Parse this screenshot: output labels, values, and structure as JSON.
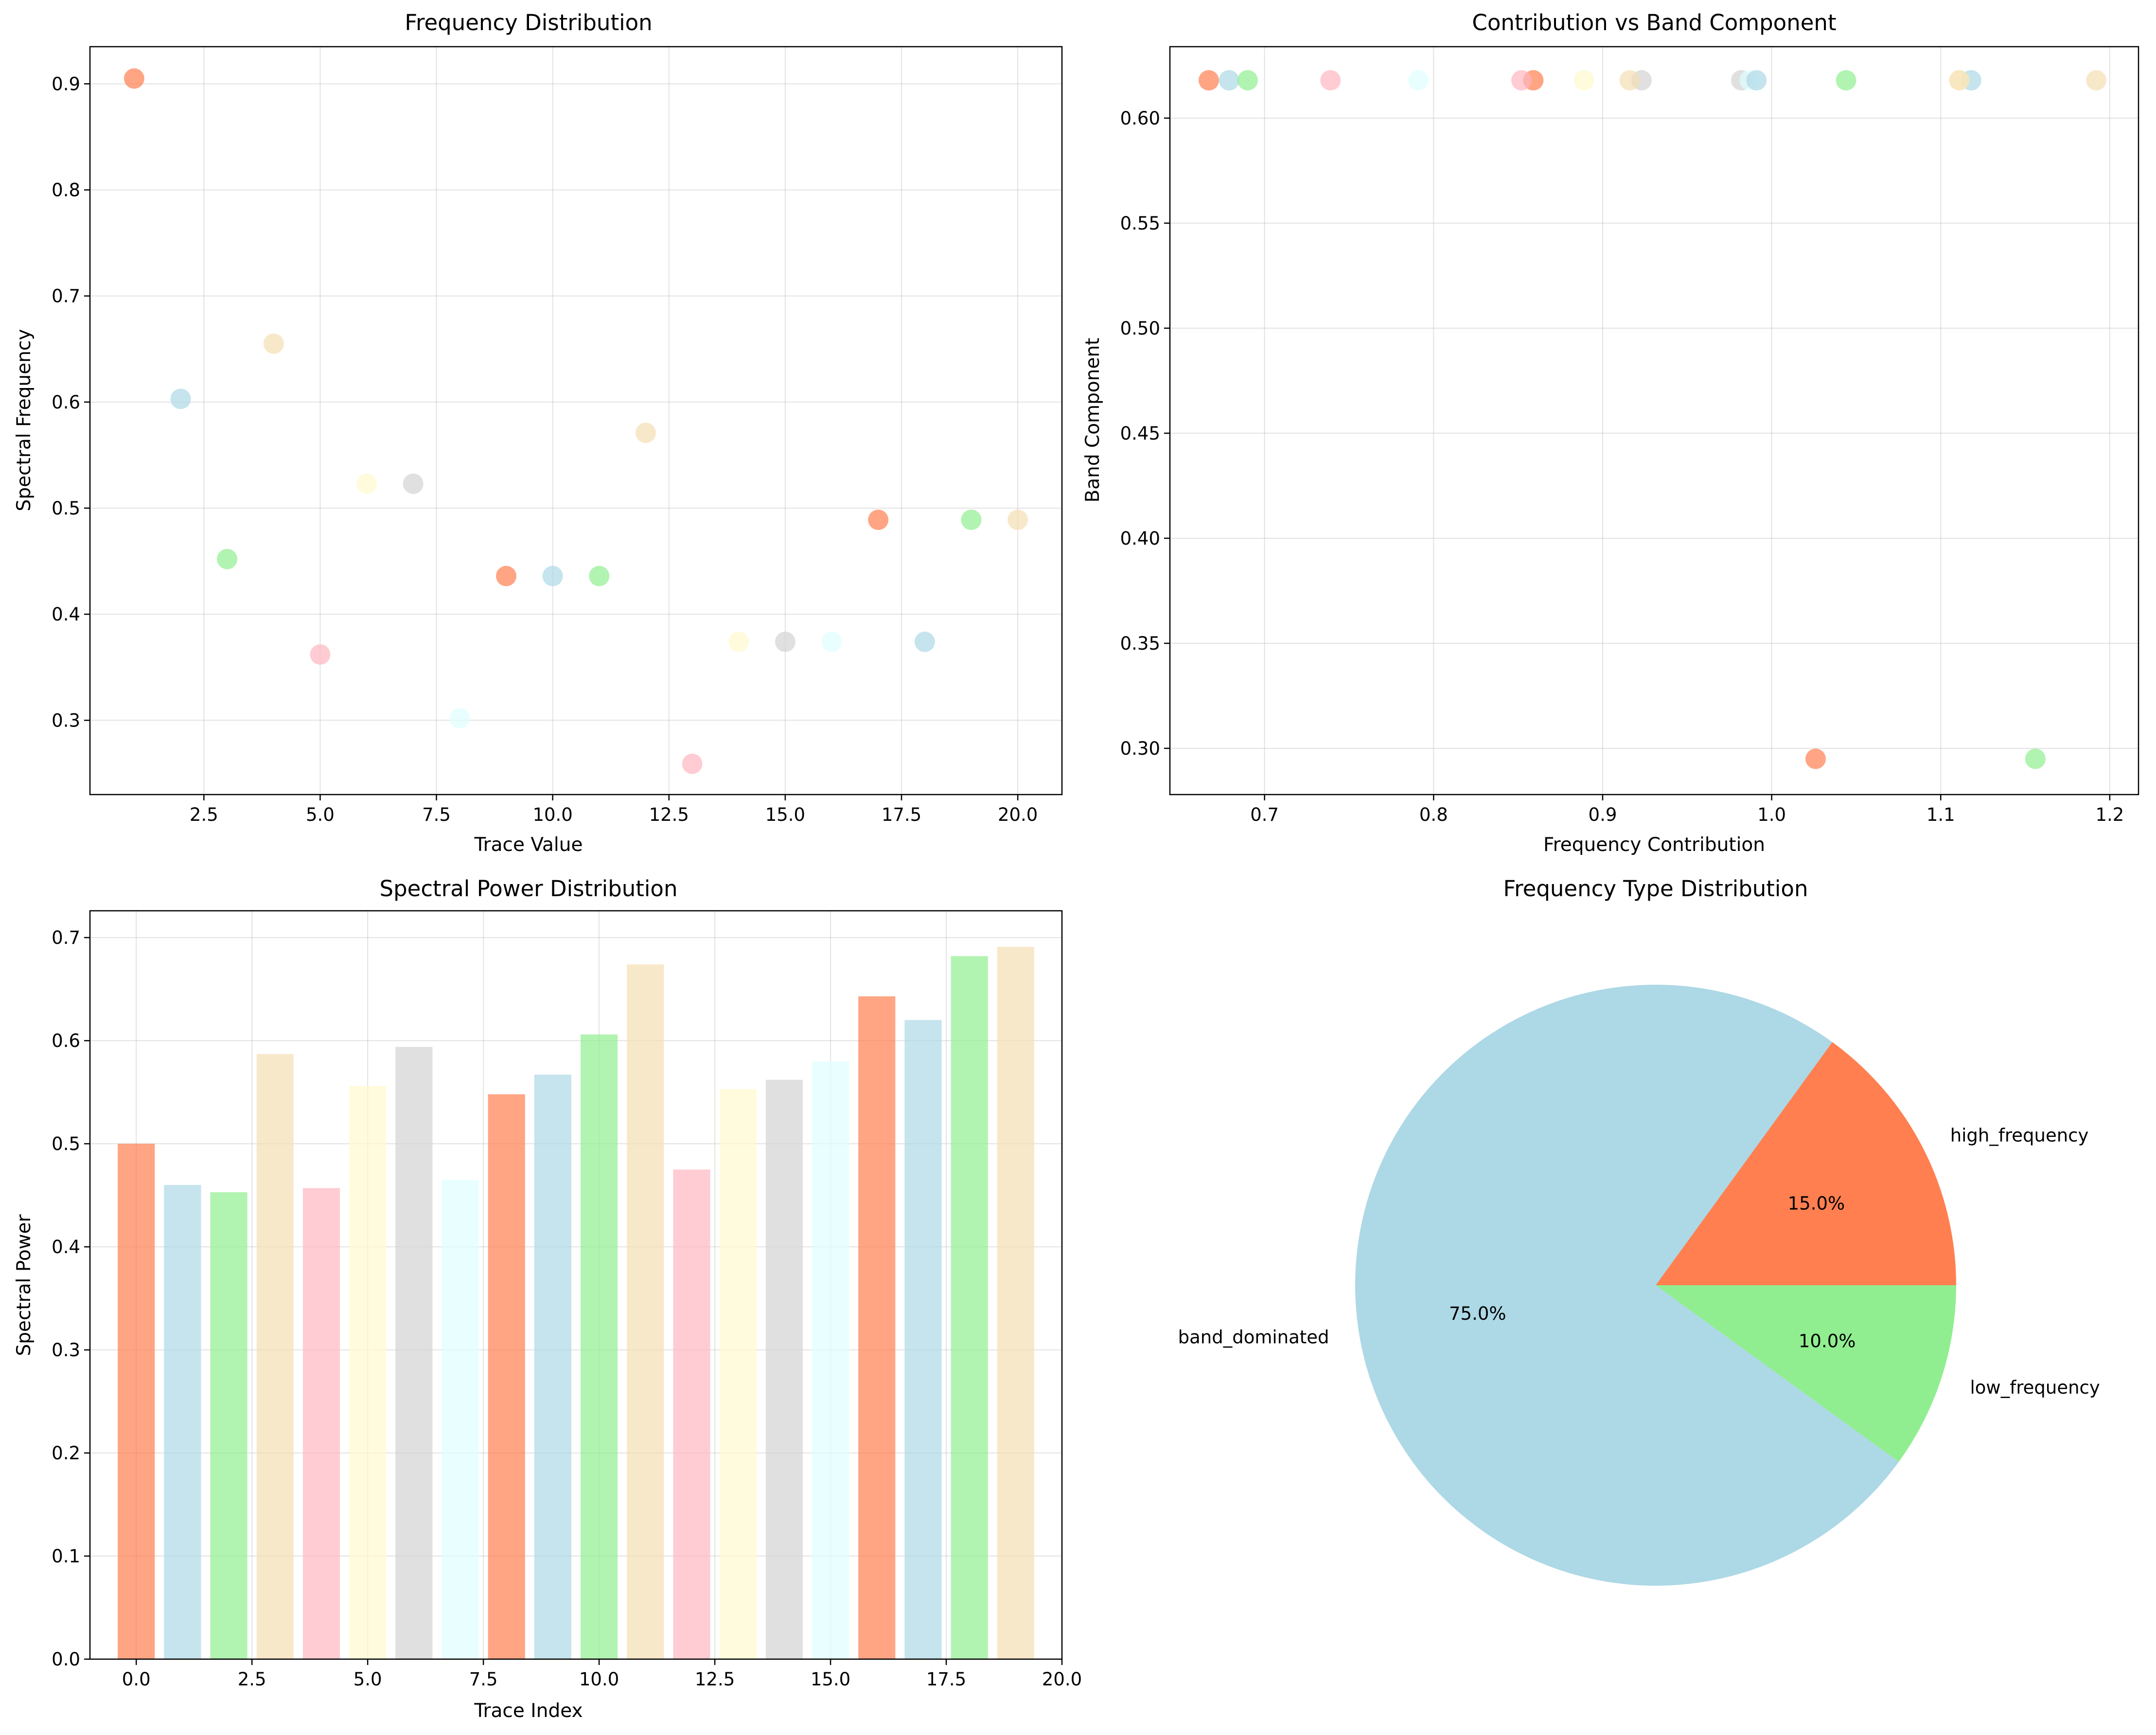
{
  "palette": [
    "#FF7F50",
    "#ADD8E6",
    "#90EE90",
    "#F5DEB3",
    "#FFB6C1",
    "#FFFACD",
    "#D3D3D3",
    "#E0FFFF"
  ],
  "chart_data": [
    {
      "type": "scatter",
      "title": "Frequency Distribution",
      "xlabel": "Trace Value",
      "ylabel": "Spectral Frequency",
      "xlim": [
        0.05,
        20.95
      ],
      "ylim": [
        0.23,
        0.935
      ],
      "xticks": [
        2.5,
        5.0,
        7.5,
        10.0,
        12.5,
        15.0,
        17.5,
        20.0
      ],
      "xtick_labels": [
        "2.5",
        "5.0",
        "7.5",
        "10.0",
        "12.5",
        "15.0",
        "17.5",
        "20.0"
      ],
      "yticks": [
        0.3,
        0.4,
        0.5,
        0.6,
        0.7,
        0.8,
        0.9
      ],
      "ytick_labels": [
        "0.3",
        "0.4",
        "0.5",
        "0.6",
        "0.7",
        "0.8",
        "0.9"
      ],
      "grid": true,
      "x": [
        1,
        2,
        3,
        4,
        5,
        6,
        7,
        8,
        9,
        10,
        11,
        12,
        13,
        14,
        15,
        16,
        17,
        18,
        19,
        20
      ],
      "y": [
        0.905,
        0.603,
        0.452,
        0.655,
        0.362,
        0.523,
        0.523,
        0.302,
        0.436,
        0.436,
        0.436,
        0.571,
        0.259,
        0.374,
        0.374,
        0.374,
        0.489,
        0.374,
        0.489,
        0.489
      ]
    },
    {
      "type": "scatter",
      "title": "Contribution vs Band Component",
      "xlabel": "Frequency Contribution",
      "ylabel": "Band Component",
      "xlim": [
        0.644,
        1.217
      ],
      "ylim": [
        0.278,
        0.634
      ],
      "xticks": [
        0.7,
        0.8,
        0.9,
        1.0,
        1.1,
        1.2
      ],
      "xtick_labels": [
        "0.7",
        "0.8",
        "0.9",
        "1.0",
        "1.1",
        "1.2"
      ],
      "yticks": [
        0.3,
        0.35,
        0.4,
        0.45,
        0.5,
        0.55,
        0.6
      ],
      "ytick_labels": [
        "0.30",
        "0.35",
        "0.40",
        "0.45",
        "0.50",
        "0.55",
        "0.60"
      ],
      "grid": true,
      "x": [
        0.667,
        1.118,
        1.044,
        1.192,
        0.739,
        0.889,
        0.923,
        0.791,
        0.859,
        0.679,
        1.156,
        0.916,
        0.852,
        1.111,
        0.982,
        0.987,
        1.026,
        0.991,
        0.69,
        1.111
      ],
      "y": [
        0.618,
        0.618,
        0.618,
        0.618,
        0.618,
        0.618,
        0.618,
        0.618,
        0.618,
        0.618,
        0.295,
        0.618,
        0.618,
        0.618,
        0.618,
        0.618,
        0.295,
        0.618,
        0.618,
        0.618
      ]
    },
    {
      "type": "bar",
      "title": "Spectral Power Distribution",
      "xlabel": "Trace Index",
      "ylabel": "Spectral Power",
      "xlim": [
        -1.0,
        20.0
      ],
      "ylim": [
        0.0,
        0.726
      ],
      "xticks": [
        0.0,
        2.5,
        5.0,
        7.5,
        10.0,
        12.5,
        15.0,
        17.5,
        20.0
      ],
      "xtick_labels": [
        "0.0",
        "2.5",
        "5.0",
        "7.5",
        "10.0",
        "12.5",
        "15.0",
        "17.5",
        "20.0"
      ],
      "yticks": [
        0.0,
        0.1,
        0.2,
        0.3,
        0.4,
        0.5,
        0.6,
        0.7
      ],
      "ytick_labels": [
        "0.0",
        "0.1",
        "0.2",
        "0.3",
        "0.4",
        "0.5",
        "0.6",
        "0.7"
      ],
      "grid": true,
      "categories": [
        0,
        1,
        2,
        3,
        4,
        5,
        6,
        7,
        8,
        9,
        10,
        11,
        12,
        13,
        14,
        15,
        16,
        17,
        18,
        19
      ],
      "values": [
        0.5,
        0.46,
        0.453,
        0.587,
        0.457,
        0.556,
        0.594,
        0.465,
        0.548,
        0.567,
        0.606,
        0.674,
        0.475,
        0.553,
        0.562,
        0.58,
        0.643,
        0.62,
        0.682,
        0.691
      ]
    },
    {
      "type": "pie",
      "title": "Frequency Type Distribution",
      "labels": [
        "high_frequency",
        "band_dominated",
        "low_frequency"
      ],
      "values": [
        15.0,
        75.0,
        10.0
      ],
      "pct_labels": [
        "15.0%",
        "75.0%",
        "10.0%"
      ],
      "colors": [
        "#FF7F50",
        "#ADD8E6",
        "#90EE90"
      ]
    }
  ]
}
